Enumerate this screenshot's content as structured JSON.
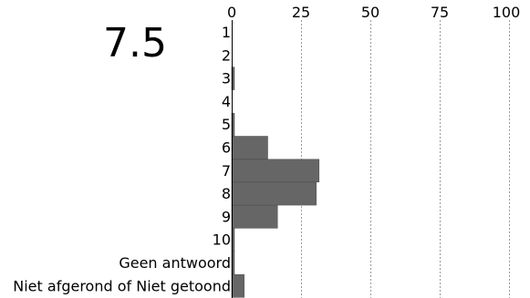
{
  "summary": {
    "score_text": "7.5"
  },
  "chart_data": {
    "type": "bar",
    "orientation": "horizontal",
    "categories": [
      "1",
      "2",
      "3",
      "4",
      "5",
      "6",
      "7",
      "8",
      "9",
      "10",
      "Geen antwoord",
      "Niet afgerond of Niet getoond"
    ],
    "values": [
      0,
      0,
      1,
      0,
      1,
      13,
      31.5,
      30.5,
      16.5,
      1,
      1,
      4.5
    ],
    "xlim": [
      0,
      100
    ],
    "xticks": [
      0,
      25,
      50,
      75,
      100
    ],
    "xticks_labels": [
      "0",
      "25",
      "50",
      "75",
      "100"
    ],
    "grid": true,
    "axis_position": "top",
    "colors": {
      "bar": "#666666",
      "grid": "#9a9a9a",
      "text": "#000000"
    }
  }
}
